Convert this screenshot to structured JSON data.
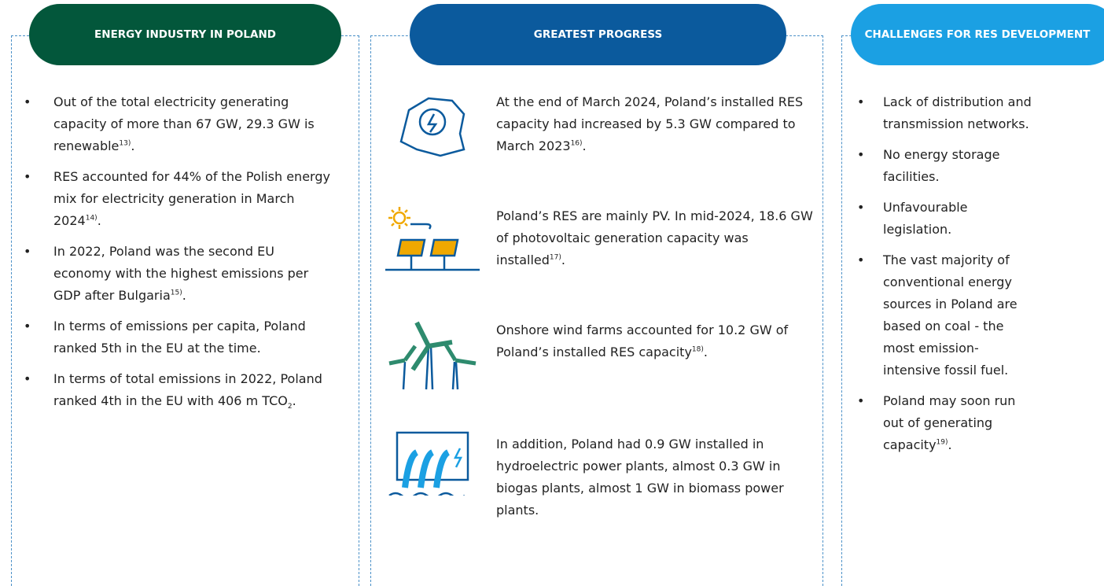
{
  "columns": [
    {
      "header": "ENERGY INDUSTRY IN POLAND",
      "items": [
        {
          "text": "Out of the total electricity generating capacity of more than 67 GW, 29.3 GW is renewable",
          "sup": "13)",
          "after": "."
        },
        {
          "text": "RES accounted for 44% of the Polish energy mix for electricity generation in March 2024",
          "sup": "14)",
          "after": "."
        },
        {
          "text": "In 2022, Poland was the second EU economy with the highest emissions per GDP after Bulgaria",
          "sup": "15)",
          "after": "."
        },
        {
          "text": "In terms of emissions per capita, Poland ranked 5th in the EU at the time."
        },
        {
          "text": "In terms of total emissions in 2022, Poland ranked  4th in the EU with 406 m TCO",
          "sub": "2",
          "after": "."
        }
      ]
    },
    {
      "header": "GREATEST PROGRESS",
      "items": [
        {
          "text": "At the end of March 2024, Poland’s installed RES capacity had increased by 5.3 GW compared to March 2023",
          "sup": "16)",
          "after": "."
        },
        {
          "text": "Poland’s RES are mainly PV. In mid-2024, 18.6 GW of photovoltaic generation capacity was installed",
          "sup": "17)",
          "after": "."
        },
        {
          "text": "Onshore wind farms accounted for 10.2 GW of Poland’s installed RES capacity",
          "sup": "18)",
          "after": "."
        },
        {
          "text": "In addition, Poland had 0.9 GW installed in hydroelectric power plants, almost 0.3 GW in biogas plants, almost 1 GW in biomass power plants."
        }
      ]
    },
    {
      "header": "CHALLENGES FOR RES DEVELOPMENT",
      "items": [
        {
          "text": "Lack of distribution and transmission networks."
        },
        {
          "text": "No energy storage facilities."
        },
        {
          "text": "Unfavourable legislation."
        },
        {
          "text": "The vast majority of conventional energy sources in Poland are based on coal - the most emission-intensive fossil fuel."
        },
        {
          "text": "Poland may soon run out of generating capacity",
          "sup": "19)",
          "after": "."
        }
      ]
    }
  ]
}
